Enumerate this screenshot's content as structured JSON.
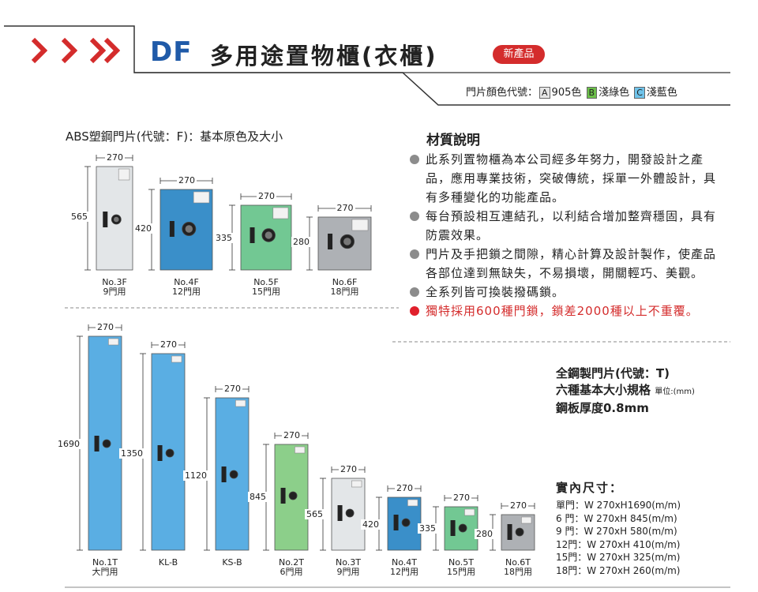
{
  "header": {
    "brand": "DF",
    "title": "多用途置物櫃(衣櫃)",
    "badge": "新產品",
    "color_code_label": "門片顏色代號：",
    "colors": [
      {
        "code": "A",
        "name": "905色",
        "hex": "#e6e6e6"
      },
      {
        "code": "B",
        "name": "淺綠色",
        "hex": "#6cc04a"
      },
      {
        "code": "C",
        "name": "淺藍色",
        "hex": "#6fc3ea"
      }
    ]
  },
  "abs_section": {
    "heading": "ABS塑鋼門片(代號：F)：基本原色及大小",
    "lockers": [
      {
        "name": "No.3F",
        "use": "9門用",
        "width": "270",
        "height": "565",
        "color": "#e3e6e8"
      },
      {
        "name": "No.4F",
        "use": "12門用",
        "width": "270",
        "height": "420",
        "color": "#3a8fc9"
      },
      {
        "name": "No.5F",
        "use": "15門用",
        "width": "270",
        "height": "335",
        "color": "#72c893"
      },
      {
        "name": "No.6F",
        "use": "18門用",
        "width": "270",
        "height": "280",
        "color": "#aeb1b5"
      }
    ]
  },
  "material": {
    "heading": "材質說明",
    "items": [
      {
        "text": "此系列置物櫃為本公司經多年努力，開發設計之產品，應用專業技術，突破傳統，採單一外體設計，具有多種變化的功能產品。",
        "highlight": false
      },
      {
        "text": "每台預設相互連結孔，以利結合增加整齊穩固，具有防震效果。",
        "highlight": false
      },
      {
        "text": "門片及手把鎖之間隙，精心計算及設計製作，使產品各部位達到無缺失，不易損壞，開關輕巧、美觀。",
        "highlight": false
      },
      {
        "text": "全系列皆可換裝撥碼鎖。",
        "highlight": false
      },
      {
        "text": "獨特採用600種門鎖，鎖差2000種以上不重覆。",
        "highlight": true
      }
    ]
  },
  "steel_section": {
    "line1": "全鋼製門片(代號：T)",
    "line2": "六種基本大小規格",
    "unit": "單位:(mm)",
    "line3": "鋼板厚度0.8mm",
    "lockers": [
      {
        "name": "No.1T",
        "use": "大門用",
        "width": "270",
        "height": "1690",
        "color": "#5aaee3"
      },
      {
        "name": "KL-B",
        "use": "",
        "width": "270",
        "height": "1350",
        "color": "#5aaee3"
      },
      {
        "name": "KS-B",
        "use": "",
        "width": "270",
        "height": "1120",
        "color": "#5aaee3"
      },
      {
        "name": "No.2T",
        "use": "6門用",
        "width": "270",
        "height": "845",
        "color": "#8ccf8a"
      },
      {
        "name": "No.3T",
        "use": "9門用",
        "width": "270",
        "height": "565",
        "color": "#e3e6e8"
      },
      {
        "name": "No.4T",
        "use": "12門用",
        "width": "270",
        "height": "420",
        "color": "#3a8fc9"
      },
      {
        "name": "No.5T",
        "use": "15門用",
        "width": "270",
        "height": "335",
        "color": "#72c893"
      },
      {
        "name": "No.6T",
        "use": "18門用",
        "width": "270",
        "height": "280",
        "color": "#aeb1b5"
      }
    ]
  },
  "inner_size": {
    "heading": "實內尺寸：",
    "rows": [
      "單門：W 270xH1690(m/m)",
      "6 門：W 270xH  845(m/m)",
      "9 門：W 270xH  580(m/m)",
      "12門：W 270xH  410(m/m)",
      "15門：W 270xH  325(m/m)",
      "18門：W 270xH  260(m/m)"
    ]
  }
}
